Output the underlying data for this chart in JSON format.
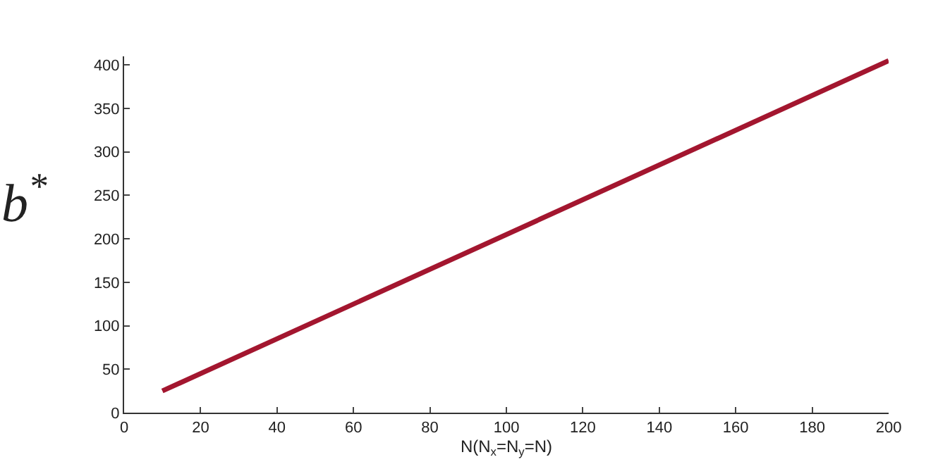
{
  "chart_data": {
    "type": "line",
    "x": [
      10,
      200
    ],
    "series": [
      {
        "color": "#a3162f",
        "values": [
          25,
          405
        ]
      }
    ],
    "xlabel": "N(N$_{x}$=N$_{y}$=N)",
    "ylabel": "b$^{*}$",
    "xlim": [
      0,
      200
    ],
    "xticks": [
      0,
      20,
      40,
      60,
      80,
      100,
      120,
      140,
      160,
      180,
      200
    ],
    "ylim": [
      0,
      410
    ],
    "yticks": [
      0,
      50,
      100,
      150,
      200,
      250,
      300,
      350,
      400
    ],
    "marker": "none",
    "line_style": "solid"
  }
}
